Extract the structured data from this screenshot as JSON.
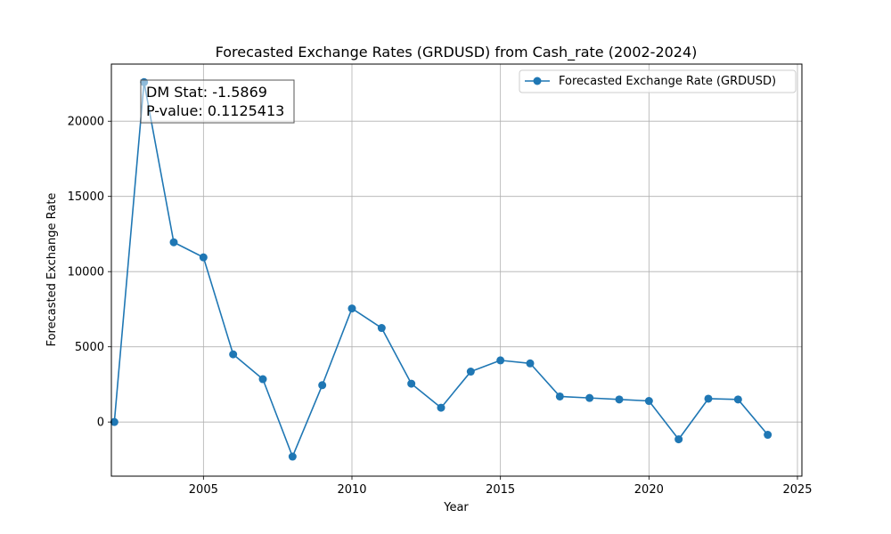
{
  "chart_data": {
    "type": "line",
    "title": "Forecasted Exchange Rates (GRDUSD) from Cash_rate (2002-2024)",
    "xlabel": "Year",
    "ylabel": "Forecasted Exchange Rate",
    "xlim": [
      2001.9,
      2025.15
    ],
    "ylim": [
      -3600,
      23800
    ],
    "xticks": [
      2005,
      2010,
      2015,
      2020,
      2025
    ],
    "yticks": [
      0,
      5000,
      10000,
      15000,
      20000
    ],
    "grid": true,
    "legend_position": "upper right",
    "series": [
      {
        "name": "Forecasted Exchange Rate (GRDUSD)",
        "color": "#1f77b4",
        "marker": "circle",
        "x": [
          2002,
          2003,
          2004,
          2005,
          2006,
          2007,
          2008,
          2009,
          2010,
          2011,
          2012,
          2013,
          2014,
          2015,
          2016,
          2017,
          2018,
          2019,
          2020,
          2021,
          2022,
          2023,
          2024
        ],
        "values": [
          0,
          22600,
          11950,
          10950,
          4500,
          2850,
          -2300,
          2450,
          7550,
          6250,
          2550,
          950,
          3350,
          4100,
          3900,
          1700,
          1600,
          1500,
          1400,
          -1150,
          1550,
          1500,
          -850
        ]
      }
    ],
    "annotation": {
      "line1": "DM Stat: -1.5869",
      "line2": "P-value: 0.1125413",
      "position": "upper left"
    }
  }
}
